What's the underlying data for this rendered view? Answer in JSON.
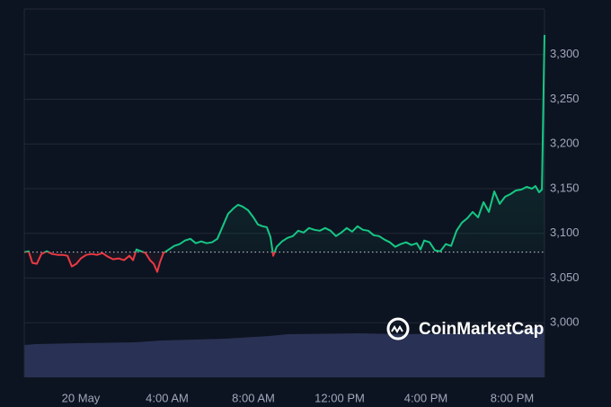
{
  "chart_data": {
    "type": "line",
    "watermark": "CoinMarketCap",
    "x": [
      -2.62,
      -2.42,
      -2.25,
      -2.04,
      -1.83,
      -1.58,
      -1.33,
      -1.08,
      -0.83,
      -0.62,
      -0.42,
      -0.21,
      0,
      0.25,
      0.5,
      0.75,
      1,
      1.25,
      1.5,
      1.75,
      2,
      2.25,
      2.42,
      2.58,
      2.79,
      3,
      3.21,
      3.38,
      3.54,
      3.67,
      3.83,
      4.08,
      4.33,
      4.58,
      4.83,
      5.08,
      5.33,
      5.58,
      5.83,
      6.08,
      6.33,
      6.58,
      6.83,
      7.08,
      7.29,
      7.5,
      7.75,
      8,
      8.21,
      8.42,
      8.62,
      8.79,
      8.92,
      9.08,
      9.33,
      9.58,
      9.83,
      10.08,
      10.33,
      10.58,
      10.83,
      11.08,
      11.33,
      11.58,
      11.83,
      12.08,
      12.33,
      12.58,
      12.83,
      13.08,
      13.33,
      13.58,
      13.83,
      14.08,
      14.33,
      14.58,
      14.83,
      15.08,
      15.33,
      15.58,
      15.75,
      15.92,
      16.17,
      16.42,
      16.67,
      16.92,
      17.17,
      17.42,
      17.67,
      17.92,
      18.17,
      18.42,
      18.67,
      18.92,
      19.17,
      19.42,
      19.67,
      19.92,
      20.17,
      20.42,
      20.67,
      20.92,
      21.08,
      21.25,
      21.38,
      21.5
    ],
    "series": [
      {
        "values": [
          3079,
          3080,
          3067,
          3066,
          3077,
          3080,
          3077,
          3076,
          3076,
          3075,
          3063,
          3066,
          3072,
          3076,
          3077,
          3076,
          3078,
          3074,
          3071,
          3072,
          3070,
          3075,
          3070,
          3082,
          3080,
          3078,
          3070,
          3066,
          3057,
          3068,
          3078,
          3082,
          3086,
          3088,
          3092,
          3094,
          3089,
          3091,
          3089,
          3090,
          3094,
          3108,
          3122,
          3128,
          3132,
          3130,
          3126,
          3118,
          3110,
          3108,
          3107,
          3096,
          3075,
          3085,
          3091,
          3095,
          3097,
          3103,
          3101,
          3106,
          3104,
          3103,
          3106,
          3103,
          3097,
          3101,
          3106,
          3102,
          3108,
          3104,
          3103,
          3098,
          3097,
          3093,
          3090,
          3085,
          3088,
          3090,
          3087,
          3089,
          3082,
          3092,
          3090,
          3081,
          3080,
          3088,
          3086,
          3103,
          3112,
          3117,
          3124,
          3118,
          3135,
          3124,
          3147,
          3133,
          3141,
          3144,
          3148,
          3149,
          3152,
          3150,
          3153,
          3146,
          3149,
          3322
        ],
        "color": "#16c784",
        "color_below": "#ea3943"
      }
    ],
    "baseline": 3079,
    "xlim": [
      -2.625,
      21.5
    ],
    "xticks": [
      {
        "value": 0,
        "label": "20 May"
      },
      {
        "value": 4,
        "label": "4:00 AM"
      },
      {
        "value": 8,
        "label": "8:00 AM"
      },
      {
        "value": 12,
        "label": "12:00 PM"
      },
      {
        "value": 16,
        "label": "4:00 PM"
      },
      {
        "value": 20,
        "label": "8:00 PM"
      }
    ],
    "ylim": [
      2939,
      3351
    ],
    "yticks": [
      {
        "value": 3000,
        "label": "3,000"
      },
      {
        "value": 3050,
        "label": "3,050"
      },
      {
        "value": 3100,
        "label": "3,100"
      },
      {
        "value": 3150,
        "label": "3,150"
      },
      {
        "value": 3200,
        "label": "3,200"
      },
      {
        "value": 3250,
        "label": "3,250"
      },
      {
        "value": 3300,
        "label": "3,300"
      }
    ],
    "grid": true
  }
}
